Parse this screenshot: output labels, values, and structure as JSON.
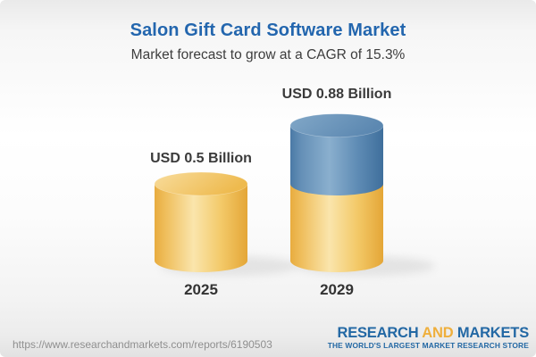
{
  "header": {
    "title": "Salon Gift Card Software Market",
    "subtitle": "Market forecast to grow at a CAGR of 15.3%"
  },
  "chart_data": {
    "type": "bar",
    "variant": "3d-cylinder",
    "title": "Salon Gift Card Software Market",
    "subtitle": "Market forecast to grow at a CAGR of 15.3%",
    "unit": "USD Billion",
    "cagr_percent": 15.3,
    "categories": [
      "2025",
      "2029"
    ],
    "values": [
      0.5,
      0.88
    ],
    "bar_labels": [
      "USD 0.5 Billion",
      "USD 0.88 Billion"
    ],
    "segments": [
      [
        {
          "value": 0.5,
          "role": "gold"
        }
      ],
      [
        {
          "value": 0.5,
          "role": "gold"
        },
        {
          "value": 0.38,
          "role": "blue"
        }
      ]
    ],
    "palette": {
      "gold": "#F0C45F",
      "blue": "#5E8BB4"
    },
    "legend": "none",
    "grid": false
  },
  "footer": {
    "url": "https://www.researchandmarkets.com/reports/6190503",
    "logo": {
      "research": "RESEARCH",
      "and": "AND",
      "markets": "MARKETS",
      "tagline": "THE WORLD'S LARGEST MARKET RESEARCH STORE"
    },
    "colors": {
      "logo_blue": "#2368A4",
      "logo_gold": "#EFAF3C",
      "title_blue": "#2366AE"
    }
  }
}
